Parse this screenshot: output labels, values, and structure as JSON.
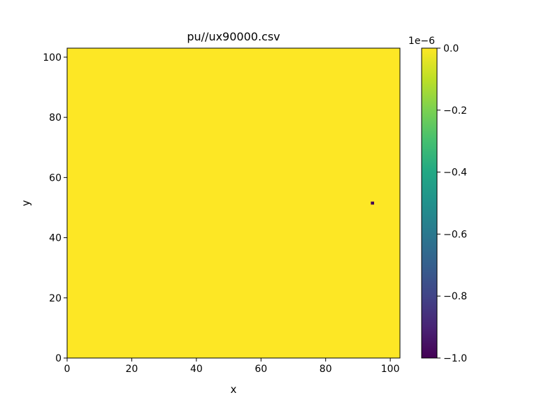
{
  "chart_data": {
    "type": "heatmap",
    "title": "pu//ux90000.csv",
    "xlabel": "x",
    "ylabel": "y",
    "xlim": [
      0,
      103
    ],
    "ylim": [
      0,
      103
    ],
    "xticks": [
      0,
      20,
      40,
      60,
      80,
      100
    ],
    "yticks": [
      0,
      20,
      40,
      60,
      80,
      100
    ],
    "xtick_labels": [
      "0",
      "20",
      "40",
      "60",
      "80",
      "100"
    ],
    "ytick_labels": [
      "0",
      "20",
      "40",
      "60",
      "80",
      "100"
    ],
    "background_value": 0.0,
    "background_color": "#fde725",
    "cells": [
      {
        "x": 94,
        "y": 51,
        "value": -1e-06,
        "color": "#440154"
      }
    ],
    "colormap": "viridis",
    "colorbar": {
      "min": -1e-06,
      "max": 0.0,
      "offset_label": "1e−6",
      "ticks": [
        0.0,
        -0.2,
        -0.4,
        -0.6,
        -0.8,
        -1.0
      ],
      "tick_labels": [
        "0.0",
        "−0.2",
        "−0.4",
        "−0.6",
        "−0.8",
        "−1.0"
      ]
    },
    "grid": false
  }
}
